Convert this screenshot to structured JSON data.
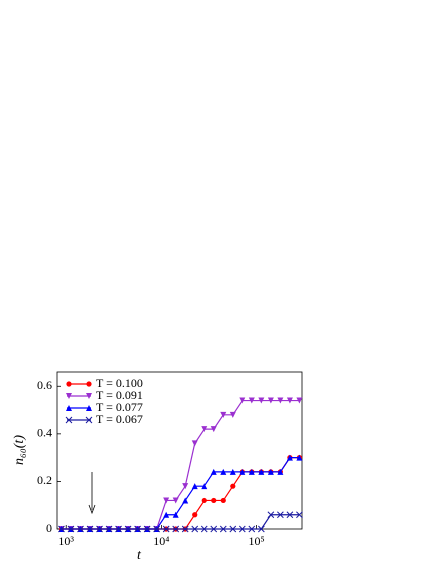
{
  "chart_data": {
    "type": "line",
    "x_label": "t",
    "y_label": "n₆₀(t)",
    "x": [
      891,
      1122,
      1413,
      1778,
      2239,
      2818,
      3548,
      4467,
      5623,
      7079,
      8913,
      11220,
      14125,
      17783,
      22387,
      28184,
      35481,
      44668,
      56234,
      70795,
      89125,
      112202,
      141254,
      177828,
      223872,
      281838
    ],
    "series": [
      {
        "name": "T = 0.100",
        "color": "#ff0000",
        "marker": "circle",
        "values": [
          0,
          0,
          0,
          0,
          0,
          0,
          0,
          0,
          0,
          0,
          0,
          0,
          0,
          0,
          0.06,
          0.12,
          0.12,
          0.12,
          0.18,
          0.24,
          0.24,
          0.24,
          0.24,
          0.24,
          0.3,
          0.3
        ]
      },
      {
        "name": "T = 0.091",
        "color": "#9b30d0",
        "marker": "triangle-down",
        "values": [
          0,
          0,
          0,
          0,
          0,
          0,
          0,
          0,
          0,
          0,
          0,
          0.12,
          0.12,
          0.18,
          0.36,
          0.42,
          0.42,
          0.48,
          0.48,
          0.54,
          0.54,
          0.54,
          0.54,
          0.54,
          0.54,
          0.54
        ]
      },
      {
        "name": "T = 0.077",
        "color": "#0000ff",
        "marker": "triangle-up",
        "values": [
          0,
          0,
          0,
          0,
          0,
          0,
          0,
          0,
          0,
          0,
          0,
          0.06,
          0.06,
          0.12,
          0.18,
          0.18,
          0.24,
          0.24,
          0.24,
          0.24,
          0.24,
          0.24,
          0.24,
          0.24,
          0.3,
          0.3
        ]
      },
      {
        "name": "T = 0.067",
        "color": "#1a1aa0",
        "marker": "x",
        "values": [
          0,
          0,
          0,
          0,
          0,
          0,
          0,
          0,
          0,
          0,
          0,
          0,
          0,
          0,
          0,
          0,
          0,
          0,
          0,
          0,
          0,
          0,
          0.06,
          0.06,
          0.06,
          0.06
        ]
      }
    ],
    "xscale": "log",
    "xlim": [
      800,
      300000
    ],
    "xticks": [
      {
        "value": 1000,
        "label": "10³"
      },
      {
        "value": 10000,
        "label": "10⁴"
      },
      {
        "value": 100000,
        "label": "10⁵"
      }
    ],
    "ylim": [
      0,
      0.66
    ],
    "yticks": [
      0,
      0.2,
      0.4,
      0.6
    ],
    "legend": "upper left"
  }
}
